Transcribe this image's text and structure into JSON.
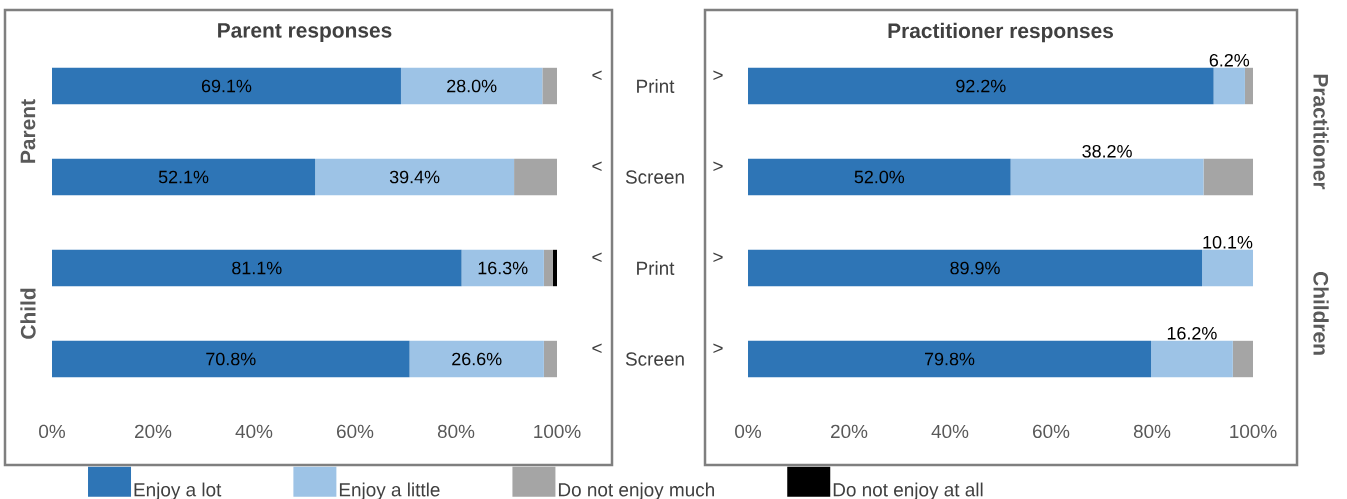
{
  "chart_data": [
    {
      "type": "bar",
      "orientation": "horizontal",
      "stacked": true,
      "title": "Parent responses",
      "categories": [
        "Print",
        "Screen",
        "Print",
        "Screen"
      ],
      "xlim": [
        0,
        100
      ],
      "xticks": [
        {
          "value": 0,
          "label": "0%"
        },
        {
          "value": 20,
          "label": "20%"
        },
        {
          "value": 40,
          "label": "40%"
        },
        {
          "value": 60,
          "label": "60%"
        },
        {
          "value": 80,
          "label": "80%"
        },
        {
          "value": 100,
          "label": "100%"
        }
      ],
      "legend": "bottom",
      "annotations": [
        "Parent",
        "Child",
        "<",
        "<",
        "<",
        "<"
      ],
      "series": [
        {
          "name": "Enjoy a lot",
          "color": "#2e75b6",
          "values": [
            69.1,
            52.1,
            81.1,
            70.8
          ],
          "value_labels": [
            "69.1%",
            "52.1%",
            "81.1%",
            "70.8%"
          ]
        },
        {
          "name": "Enjoy a little",
          "color": "#9dc3e6",
          "values": [
            28.0,
            39.4,
            16.3,
            26.6
          ],
          "value_labels": [
            "28.0%",
            "39.4%",
            "16.3%",
            "26.6%"
          ]
        },
        {
          "name": "Do not enjoy much",
          "color": "#a5a5a5",
          "values": [
            2.9,
            8.5,
            1.8,
            2.6
          ]
        },
        {
          "name": "Do not enjoy at all",
          "color": "#000000",
          "values": [
            0,
            0,
            0.8,
            0
          ]
        }
      ]
    },
    {
      "type": "bar",
      "orientation": "horizontal",
      "stacked": true,
      "title": "Practitioner responses",
      "categories": [
        null,
        null,
        null,
        null
      ],
      "tick_labels": "x",
      "xlim": [
        0,
        100
      ],
      "xticks": [
        {
          "value": 0,
          "label": "0%"
        },
        {
          "value": 20,
          "label": "20%"
        },
        {
          "value": 40,
          "label": "40%"
        },
        {
          "value": 60,
          "label": "60%"
        },
        {
          "value": 80,
          "label": "80%"
        },
        {
          "value": 100,
          "label": "100%"
        }
      ],
      "annotations": [
        "Practitioner",
        "Children",
        ">",
        ">",
        ">",
        ">"
      ],
      "series": [
        {
          "color": "#2e75b6",
          "values": [
            92.2,
            52.0,
            89.9,
            79.8
          ],
          "value_labels": [
            "92.2%",
            "52.0%",
            "89.9%",
            "79.8%"
          ]
        },
        {
          "color": "#9dc3e6",
          "values": [
            6.2,
            38.2,
            10.1,
            16.2
          ],
          "value_labels": [
            "6.2%",
            "38.2%",
            "10.1%",
            "16.2%"
          ]
        },
        {
          "color": "#a5a5a5",
          "values": [
            1.6,
            9.8,
            0,
            4.0
          ]
        }
      ]
    }
  ]
}
